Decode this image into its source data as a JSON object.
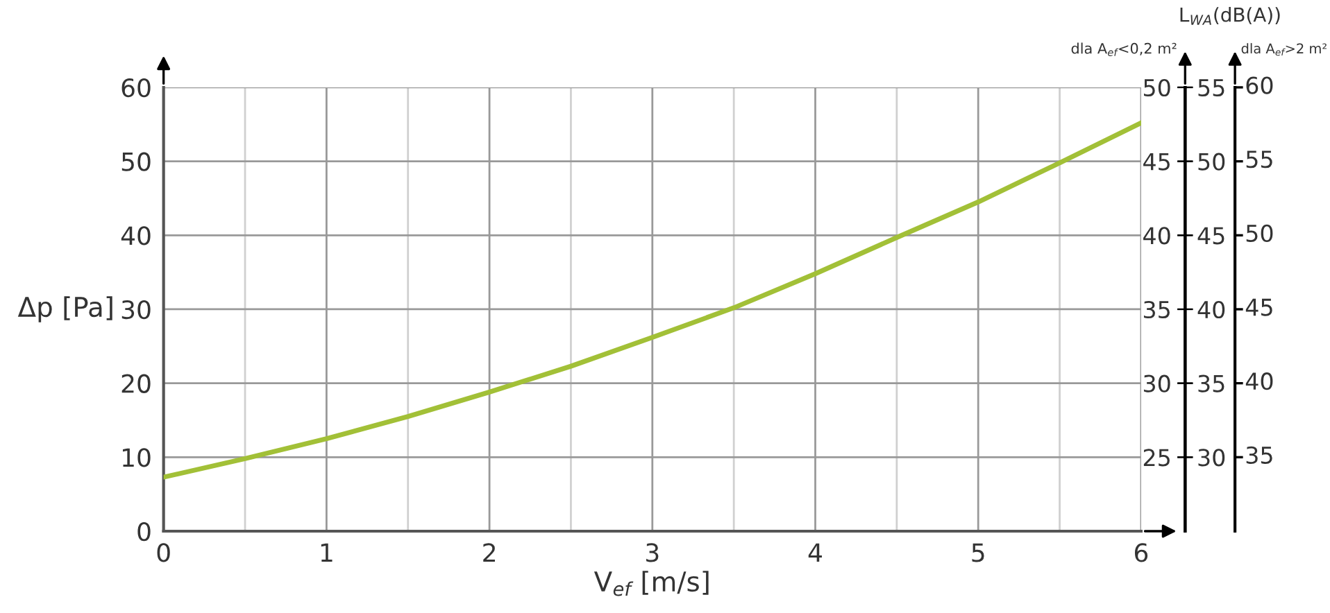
{
  "chart_data": {
    "type": "line",
    "xlabel": "V$_{ef}$ [m/s]",
    "ylabel": "Δp [Pa]",
    "y2label": "L$_{WA}$(dB(A))",
    "y3label": "dla A$_{ef}$<0,2 m²",
    "annotations": [
      "dla A$_{ef}$>2 m²",
      "35",
      "40",
      "45",
      "50",
      "55",
      "60"
    ],
    "x": [
      0,
      0.5,
      1,
      1.5,
      2,
      2.5,
      3,
      3.5,
      4,
      4.5,
      5,
      5.5,
      6
    ],
    "series": [
      {
        "color": "#a2c037",
        "values": [
          7.3,
          9.8,
          12.5,
          15.5,
          18.8,
          22.3,
          26.2,
          30.2,
          34.8,
          39.7,
          44.5,
          49.8,
          55.2
        ]
      }
    ],
    "xlim": [
      0,
      6
    ],
    "ylim": [
      0,
      60
    ],
    "xticks": [
      0,
      {
        "value": 0.5,
        "label": null
      },
      1,
      {
        "value": 1.5,
        "label": null
      },
      2,
      {
        "value": 2.5,
        "label": null
      },
      3,
      {
        "value": 3.5,
        "label": null
      },
      4,
      {
        "value": 4.5,
        "label": null
      },
      5,
      {
        "value": 5.5,
        "label": null
      },
      6
    ],
    "yticks": [
      0,
      10,
      20,
      30,
      40,
      50,
      60
    ],
    "y2lim": [
      20,
      50
    ],
    "y2ticks": [
      25,
      30,
      35,
      40,
      45,
      50
    ],
    "y3lim": [
      25,
      55
    ],
    "y3ticks": [
      30,
      35,
      40,
      45,
      50,
      55
    ],
    "grid": true,
    "marker": "none",
    "line_style": "solid",
    "legend": false
  }
}
